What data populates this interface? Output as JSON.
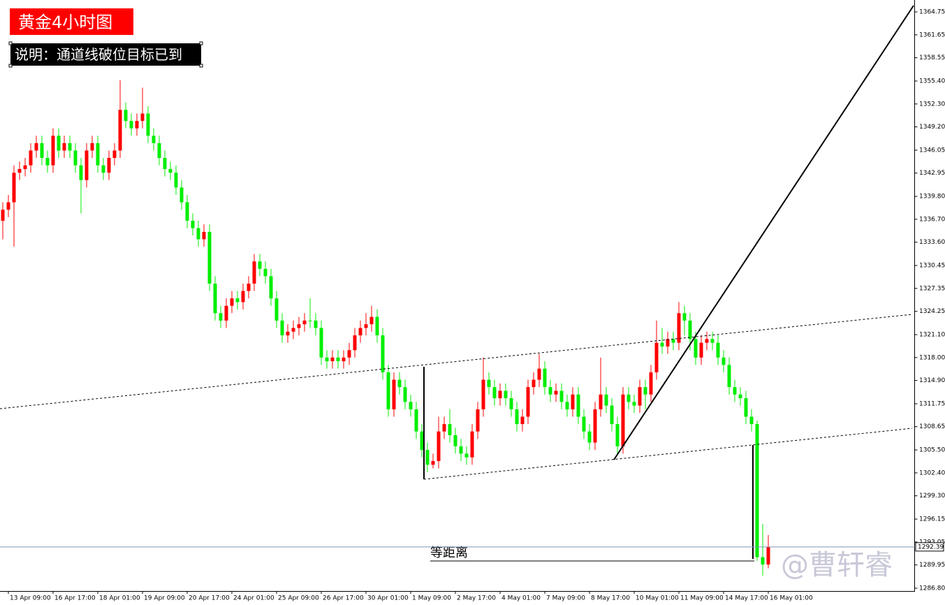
{
  "chart_data": {
    "type": "candlestick",
    "title": "黄金4小时图",
    "subtitle": "说明：通道线破位目标已到",
    "annotation": "等距离",
    "watermark": "@曹轩睿",
    "rise_color": "#ff0000",
    "fall_color": "#00ee00",
    "ylim": [
      1286.42,
      1366.36
    ],
    "yticks": [
      1364.75,
      1361.65,
      1358.55,
      {
        "value": 1355.4,
        "label": "1355.40"
      },
      {
        "value": 1352.3,
        "label": "1352.30"
      },
      {
        "value": 1349.2,
        "label": "1349.20"
      },
      1346.05,
      1342.95,
      {
        "value": 1339.8,
        "label": "1339.80"
      },
      {
        "value": 1336.7,
        "label": "1336.70"
      },
      {
        "value": 1333.6,
        "label": "1333.60"
      },
      1330.45,
      1327.35,
      1324.25,
      {
        "value": 1321.1,
        "label": "1321.10"
      },
      {
        "value": 1318,
        "label": "1318.00"
      },
      {
        "value": 1314.9,
        "label": "1314.90"
      },
      1311.75,
      1308.65,
      {
        "value": 1305.5,
        "label": "1305.50"
      },
      {
        "value": 1302.4,
        "label": "1302.40"
      },
      {
        "value": 1299.3,
        "label": "1299.30"
      },
      1296.15,
      1293.05,
      1289.95,
      {
        "value": 1286.8,
        "label": "1286.80"
      }
    ],
    "categories": [
      null,
      "13 Apr 09:00",
      null,
      null,
      null,
      null,
      null,
      null,
      null,
      "16 Apr 17:00",
      null,
      null,
      null,
      null,
      null,
      null,
      null,
      "18 Apr 01:00",
      null,
      null,
      null,
      null,
      null,
      null,
      null,
      "19 Apr 09:00",
      null,
      null,
      null,
      null,
      null,
      null,
      null,
      "20 Apr 17:00",
      null,
      null,
      null,
      null,
      null,
      null,
      null,
      "24 Apr 01:00",
      null,
      null,
      null,
      null,
      null,
      null,
      null,
      "25 Apr 09:00",
      null,
      null,
      null,
      null,
      null,
      null,
      null,
      "26 Apr 17:00",
      null,
      null,
      null,
      null,
      null,
      null,
      null,
      "30 Apr 01:00",
      null,
      null,
      null,
      null,
      null,
      null,
      null,
      "1 May 09:00",
      null,
      null,
      null,
      null,
      null,
      null,
      null,
      "2 May 17:00",
      null,
      null,
      null,
      null,
      null,
      null,
      null,
      "4 May 01:00",
      null,
      null,
      null,
      null,
      null,
      null,
      null,
      "7 May 09:00",
      null,
      null,
      null,
      null,
      null,
      null,
      null,
      "8 May 17:00",
      null,
      null,
      null,
      null,
      null,
      null,
      null,
      "10 May 01:00",
      null,
      null,
      null,
      null,
      null,
      null,
      null,
      "11 May 09:00",
      null,
      null,
      null,
      null,
      null,
      null,
      null,
      "14 May 17:00",
      null,
      null,
      null,
      null,
      null,
      null,
      null,
      "16 May 01:00"
    ],
    "open": [
      1336.5,
      1338,
      1339,
      1343,
      1343.5,
      1344,
      1346,
      1347,
      1345,
      1344,
      1348,
      1346,
      1347,
      1346,
      1344,
      1342,
      1346,
      1347,
      1344,
      1343,
      1345,
      1346,
      1351.5,
      1350,
      1349,
      1350,
      1351,
      1348,
      1347,
      1345,
      1343.5,
      1343,
      1341,
      1339,
      1336.5,
      1335.5,
      1334,
      1335,
      1328,
      1324,
      1323,
      1325,
      1326,
      1325.5,
      1327,
      1328,
      1331,
      1330,
      1329,
      1326,
      1323,
      1321,
      1321.5,
      1322,
      1322.5,
      1323,
      1323,
      1322,
      1318,
      1317.5,
      1318,
      1317.5,
      1318,
      1319,
      1321,
      1322,
      1322.5,
      1323.5,
      1321,
      1316,
      1311,
      1315,
      1314,
      1312,
      1311,
      1308,
      1305.5,
      1303.5,
      1304,
      1308,
      1309,
      1307.5,
      1306,
      1305,
      1304.5,
      1308,
      1311,
      1315,
      1314,
      1312.5,
      1313.5,
      1312.5,
      1311,
      1309,
      1310,
      1314,
      1315,
      1316.5,
      1314,
      1313,
      1313.5,
      1312,
      1311,
      1313,
      1310,
      1308,
      1306.5,
      1311,
      1313,
      1311.5,
      1309,
      1306,
      1313,
      1312,
      1311.5,
      1314,
      1313,
      1316,
      1320,
      1319.5,
      1320.5,
      1320,
      1324,
      1323,
      1320.5,
      1318,
      1320,
      1320.5,
      1320,
      1318,
      1317,
      1314,
      1313,
      1312.5,
      1310,
      1309,
      1291,
      1290
    ],
    "high": [
      1339,
      1340,
      1344,
      1344.5,
      1345,
      1347,
      1348,
      1348,
      1346,
      1349,
      1349,
      1348,
      1348,
      1347,
      1345,
      1347,
      1348,
      1348,
      1345,
      1346,
      1347,
      1355.5,
      1352.5,
      1351,
      1351,
      1354.5,
      1352,
      1349,
      1348,
      1346,
      1344.5,
      1344,
      1342,
      1340,
      1337.5,
      1336.5,
      1336,
      1336,
      1329,
      1325,
      1326,
      1327,
      1327,
      1328,
      1329,
      1332,
      1332,
      1331,
      1330,
      1327,
      1324,
      1322.5,
      1323,
      1323.5,
      1324,
      1326,
      1324,
      1323,
      1319,
      1319,
      1319,
      1319,
      1320,
      1322,
      1323,
      1324,
      1325,
      1324.5,
      1322,
      1317,
      1316,
      1316,
      1315,
      1313,
      1312,
      1309,
      1306.5,
      1305,
      1310,
      1310,
      1311,
      1308.5,
      1307,
      1306,
      1309,
      1312,
      1318,
      1316,
      1315,
      1314.5,
      1314.5,
      1313.5,
      1312,
      1311,
      1315,
      1316,
      1318.5,
      1317.5,
      1315,
      1314.5,
      1314.5,
      1313,
      1314,
      1314,
      1311,
      1309,
      1312,
      1318,
      1314,
      1312.5,
      1310,
      1314,
      1314,
      1313,
      1315,
      1315,
      1317,
      1323,
      1322,
      1321.5,
      1321.5,
      1325.5,
      1325,
      1324,
      1321.5,
      1321,
      1321.5,
      1321.5,
      1321,
      1319,
      1318,
      1315,
      1314,
      1313.5,
      1311,
      1309.5,
      1295.5,
      1294
    ],
    "low": [
      1334,
      1337,
      1333,
      1342,
      1342.5,
      1343,
      1345,
      1344,
      1343,
      1343,
      1345,
      1345,
      1345,
      1343,
      1337.5,
      1341,
      1345,
      1343,
      1342,
      1342,
      1344,
      1345,
      1349,
      1348,
      1348,
      1349,
      1347,
      1346,
      1344,
      1342.5,
      1342,
      1340,
      1338,
      1335.5,
      1334.5,
      1333,
      1333,
      1327,
      1323,
      1322,
      1322,
      1324,
      1324.5,
      1324.5,
      1326,
      1327,
      1329,
      1328,
      1325,
      1322,
      1320,
      1320,
      1320.5,
      1321,
      1321.5,
      1322,
      1321,
      1317,
      1316.5,
      1316.5,
      1316.5,
      1316.5,
      1317,
      1318,
      1320,
      1321,
      1321.5,
      1320,
      1315,
      1310,
      1310,
      1313,
      1311,
      1310,
      1307,
      1304.5,
      1302.5,
      1303,
      1303,
      1307,
      1306.5,
      1305,
      1304,
      1303.5,
      1303.5,
      1307,
      1310,
      1313,
      1311.5,
      1311.5,
      1311.5,
      1310,
      1308,
      1308,
      1309,
      1313,
      1314,
      1313,
      1312,
      1312,
      1311,
      1310,
      1310,
      1309,
      1307,
      1305.5,
      1305.5,
      1310,
      1310.5,
      1308,
      1305,
      1305,
      1311,
      1310.5,
      1310.5,
      1311,
      1312,
      1315,
      1318.5,
      1318.5,
      1319,
      1319,
      1321,
      1319,
      1317,
      1317,
      1319,
      1319,
      1317,
      1316,
      1313,
      1312,
      1311.5,
      1309,
      1308,
      1290.5,
      1288.5,
      1289.5
    ],
    "close": [
      1338,
      1339,
      1343,
      1343.5,
      1344,
      1346,
      1347,
      1345,
      1344,
      1348,
      1346,
      1347,
      1346,
      1344,
      1342,
      1346,
      1347,
      1344,
      1343,
      1345,
      1346,
      1351.5,
      1350,
      1349,
      1350,
      1351,
      1348,
      1347,
      1345,
      1343.5,
      1343,
      1341,
      1339,
      1336.5,
      1335.5,
      1334,
      1335,
      1328,
      1324,
      1323,
      1325,
      1326,
      1325.5,
      1327,
      1328,
      1331,
      1330,
      1329,
      1326,
      1323,
      1321,
      1321.5,
      1322,
      1322.5,
      1323,
      1323,
      1322,
      1318,
      1317.5,
      1318,
      1317.5,
      1318,
      1319,
      1321,
      1322,
      1322.5,
      1323.5,
      1321,
      1316,
      1311,
      1315,
      1314,
      1312,
      1311,
      1308,
      1305.5,
      1303.5,
      1304,
      1308,
      1309,
      1307.5,
      1306,
      1305,
      1304.5,
      1308,
      1311,
      1315,
      1314,
      1312.5,
      1313.5,
      1312.5,
      1311,
      1309,
      1310,
      1314,
      1315,
      1316.5,
      1314,
      1313,
      1313.5,
      1312,
      1311,
      1313,
      1310,
      1308,
      1306.5,
      1311,
      1313,
      1311.5,
      1309,
      1306,
      1313,
      1312,
      1311.5,
      1314,
      1313,
      1316,
      1320,
      1319.5,
      1320.5,
      1320,
      1324,
      1323,
      1320.5,
      1318,
      1320,
      1320.5,
      1320,
      1318,
      1317,
      1314,
      1313,
      1312.5,
      1310,
      1309,
      1291,
      1290,
      1292.39
    ]
  }
}
